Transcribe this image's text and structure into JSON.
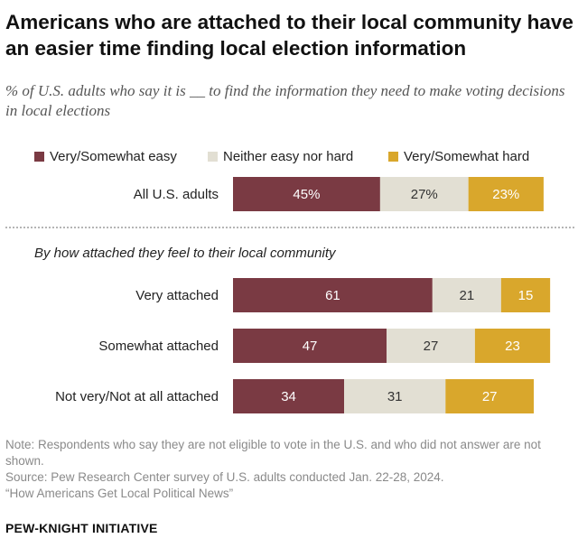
{
  "header": {
    "title": "Americans who are attached to their local community have an easier time finding local election information",
    "subtitle": "% of U.S. adults who say it is __ to find the information they need to make voting decisions in local elections"
  },
  "colors": {
    "easy": "#7a3a43",
    "neither": "#e2dfd3",
    "hard": "#d9a72c",
    "easy_text": "#ffffff",
    "neither_text": "#333333",
    "hard_text": "#ffffff"
  },
  "group_label": "By how attached they feel to their local community",
  "chart_data": {
    "type": "bar",
    "orientation": "horizontal",
    "stacked": true,
    "title": "Americans who are attached to their local community have an easier time finding local election information",
    "subtitle": "% of U.S. adults who say it is __ to find the information they need to make voting decisions in local elections",
    "legend_position": "top",
    "legend": [
      "Very/Somewhat easy",
      "Neither easy nor hard",
      "Very/Somewhat hard"
    ],
    "categories": [
      "All U.S. adults",
      "Very attached",
      "Somewhat attached",
      "Not very/Not at all attached"
    ],
    "series": [
      {
        "name": "Very/Somewhat easy",
        "values": [
          45,
          61,
          47,
          34
        ],
        "labels": [
          "45%",
          "61",
          "47",
          "34"
        ]
      },
      {
        "name": "Neither easy nor hard",
        "values": [
          27,
          21,
          27,
          31
        ],
        "labels": [
          "27%",
          "21",
          "27",
          "31"
        ]
      },
      {
        "name": "Very/Somewhat hard",
        "values": [
          23,
          15,
          23,
          27
        ],
        "labels": [
          "23%",
          "15",
          "23",
          "27"
        ]
      }
    ],
    "xlim": [
      0,
      100
    ]
  },
  "footer": {
    "note": "Note: Respondents who say they are not eligible to vote in the U.S. and who did not answer are not shown.",
    "source": "Source: Pew Research Center survey of U.S. adults conducted Jan. 22-28, 2024.",
    "report": "“How Americans Get Local Political News”",
    "brand": "PEW-KNIGHT INITIATIVE"
  }
}
